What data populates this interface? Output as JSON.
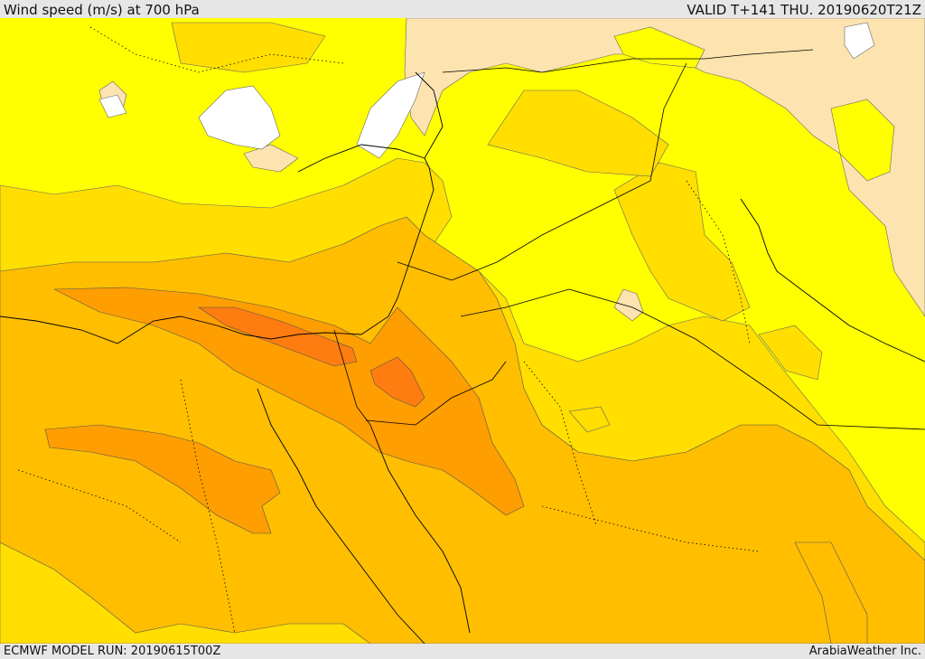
{
  "header": {
    "title": "Wind speed (m/s) at 700 hPa",
    "valid": "VALID T+141 THU. 20190620T21Z"
  },
  "footer": {
    "model_run": "ECMWF MODEL RUN: 20190615T00Z",
    "credit": "ArabiaWeather Inc."
  },
  "colors": {
    "calm": "#ffffff",
    "light": "#fde3b0",
    "moderate": "#ffff00",
    "fresh": "#ffde00",
    "strong": "#ffbe00",
    "very_strong": "#ff9e00",
    "gale": "#ff7d10",
    "borders": "#000000"
  }
}
